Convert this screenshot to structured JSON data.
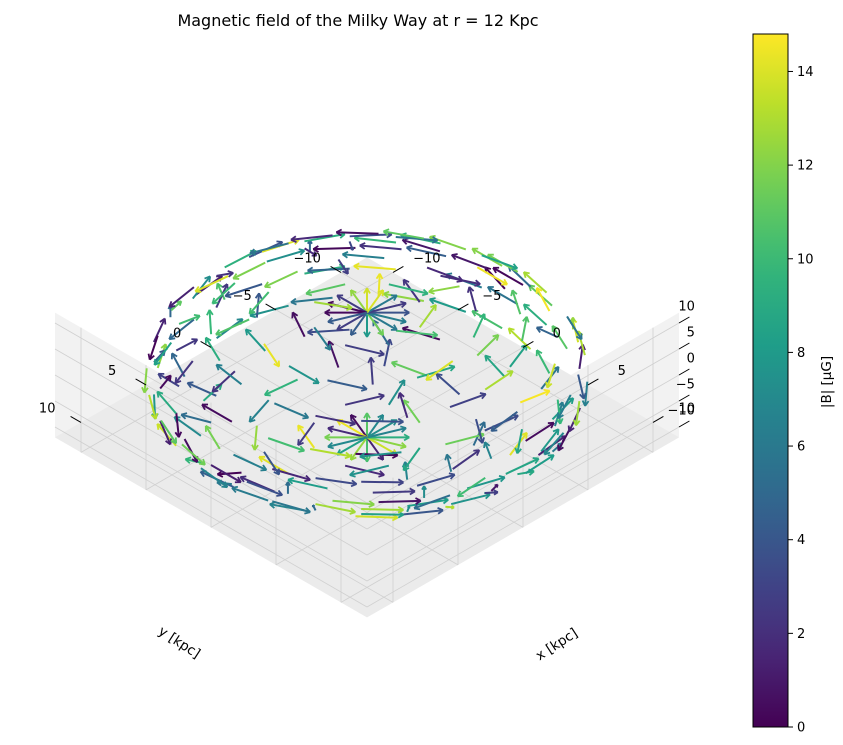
{
  "chart_data": {
    "type": "quiver3d",
    "title": "Magnetic field of the Milky Way at r = 12 Kpc",
    "xlabel": "x [kpc]",
    "ylabel": "y [kpc]",
    "zlabel": "",
    "xlim": [
      -12,
      12
    ],
    "ylim": [
      -12,
      12
    ],
    "zlim": [
      -12,
      12
    ],
    "x_ticks": [
      -10,
      -5,
      0,
      5,
      10
    ],
    "y_ticks": [
      -10,
      -5,
      0,
      5,
      10
    ],
    "z_ticks": [
      -10,
      -5,
      0,
      5,
      10
    ],
    "x_tick_labels": [
      "−10",
      "−5",
      "0",
      "5",
      "10"
    ],
    "y_tick_labels": [
      "−10",
      "−5",
      "0",
      "5",
      "10"
    ],
    "z_tick_labels": [
      "−10",
      "−5",
      "0",
      "5",
      "10"
    ],
    "sphere_radius": 12,
    "view": {
      "elevation_deg": 30,
      "azimuth_deg": -135
    },
    "grid": true,
    "colormap": "viridis",
    "colorbar": {
      "label": "|B| [μG]",
      "range": [
        0,
        14.8
      ],
      "ticks": [
        0,
        2,
        4,
        6,
        8,
        10,
        12,
        14
      ],
      "tick_labels": [
        "0",
        "2",
        "4",
        "6",
        "8",
        "10",
        "12",
        "14"
      ]
    },
    "colors": {
      "viridis": [
        "#440154",
        "#482878",
        "#3e4989",
        "#31688e",
        "#26828e",
        "#1f9e89",
        "#35b779",
        "#6ece58",
        "#b5de2b",
        "#fde725"
      ],
      "pane_side": "#f2f2f2",
      "pane_floor": "#ebebeb",
      "grid": "#d0d0d0"
    }
  }
}
